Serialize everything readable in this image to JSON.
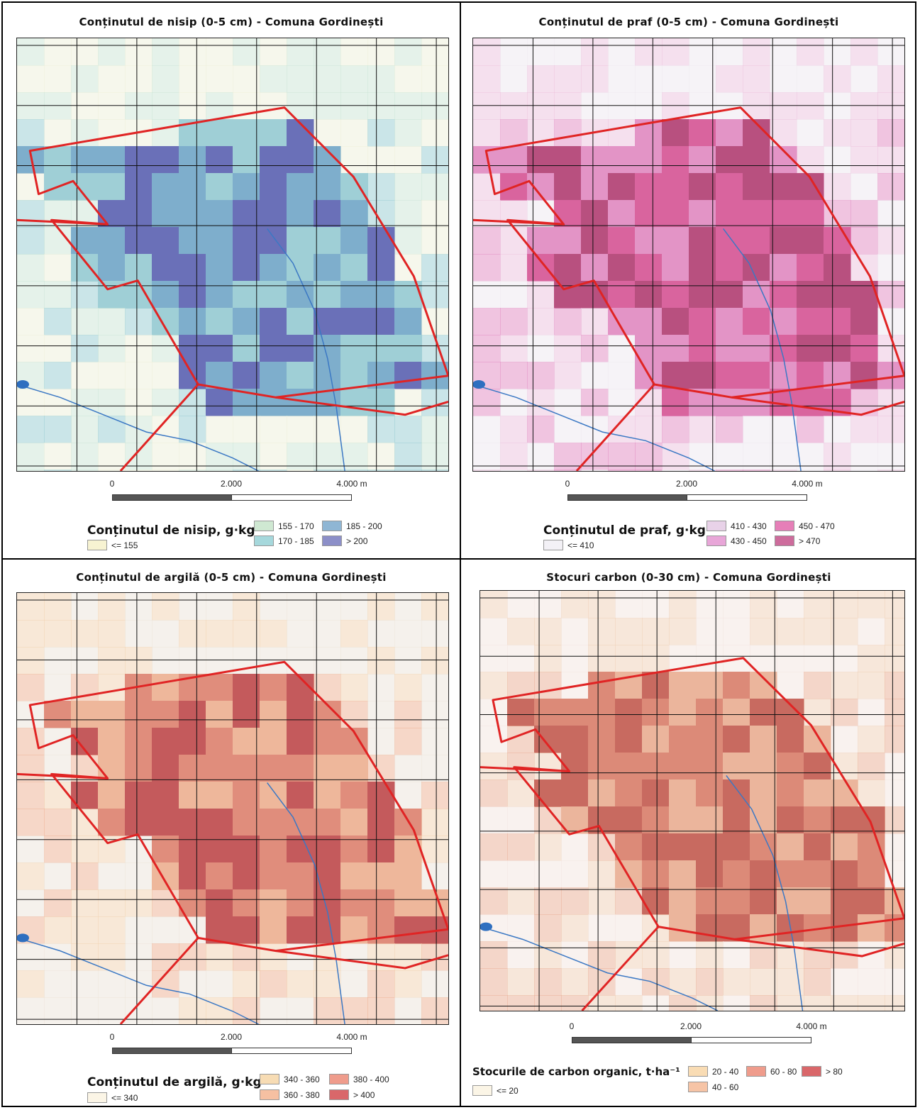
{
  "panels": [
    {
      "title": "Conținutul de nisip (0-5 cm) - Comuna Gordinești",
      "scale": {
        "zero": "0",
        "mid": "2.000",
        "end": "4.000 m"
      },
      "legend": {
        "title": "Conținutul de nisip, g·kg⁻¹",
        "items": [
          {
            "label": "<= 155",
            "color": "#f7f3d2"
          },
          {
            "label": "155 - 170",
            "color": "#cfe8d2"
          },
          {
            "label": "170 - 185",
            "color": "#a6d8dc"
          },
          {
            "label": "185 - 200",
            "color": "#8fb6d4"
          },
          {
            "label": "> 200",
            "color": "#8c8fc8"
          }
        ]
      },
      "colors": [
        "#eef1dc",
        "#cfe8d8",
        "#9fcfd6",
        "#7eaecc",
        "#6a70b8"
      ]
    },
    {
      "title": "Conținutul de praf (0-5 cm) - Comuna Gordinești",
      "scale": {
        "zero": "0",
        "mid": "2.000",
        "end": "4.000 m"
      },
      "legend": {
        "title": "Conținutul de praf, g·kg⁻¹",
        "items": [
          {
            "label": "<= 410",
            "color": "#f3f1f6"
          },
          {
            "label": "410 - 430",
            "color": "#e8d2e8"
          },
          {
            "label": "430 - 450",
            "color": "#e8a6d8"
          },
          {
            "label": "450 - 470",
            "color": "#e67fb8"
          },
          {
            "label": "> 470",
            "color": "#cd6c9c"
          }
        ]
      },
      "colors": [
        "#eeeaf0",
        "#ecc7e0",
        "#e394c6",
        "#d9649e",
        "#b8507f"
      ]
    },
    {
      "title": "Conținutul de argilă (0-5 cm) - Comuna Gordinești",
      "scale": {
        "zero": "0",
        "mid": "2.000",
        "end": "4.000 m"
      },
      "legend": {
        "title": "Conținutul de argilă, g·kg⁻¹",
        "items": [
          {
            "label": "<= 340",
            "color": "#fbf5e6"
          },
          {
            "label": "340 - 360",
            "color": "#f7dcb4"
          },
          {
            "label": "360 - 380",
            "color": "#f6c0a2"
          },
          {
            "label": "380 - 400",
            "color": "#ef9c8c"
          },
          {
            "label": "> 400",
            "color": "#d9676a"
          }
        ]
      },
      "colors": [
        "#ece6dc",
        "#f2d6b6",
        "#eeb79b",
        "#e08d7c",
        "#c45a5c"
      ]
    },
    {
      "title": "Stocuri carbon (0-30 cm) - Comuna Gordinești",
      "scale": {
        "zero": "0",
        "mid": "2.000",
        "end": "4.000 m"
      },
      "legend": {
        "title": "Stocurile de carbon organic, t·ha⁻¹",
        "items": [
          {
            "label": "<= 20",
            "color": "#fbf5e6"
          },
          {
            "label": "20 - 40",
            "color": "#f9dcb4"
          },
          {
            "label": "40 - 60",
            "color": "#f6c4a6"
          },
          {
            "label": "60 - 80",
            "color": "#ef9c8c"
          },
          {
            "label": "> 80",
            "color": "#d9676a"
          }
        ]
      },
      "colors": [
        "#f4e8e2",
        "#f1d3bc",
        "#ebb59c",
        "#dc8a78",
        "#c86a60"
      ]
    }
  ]
}
